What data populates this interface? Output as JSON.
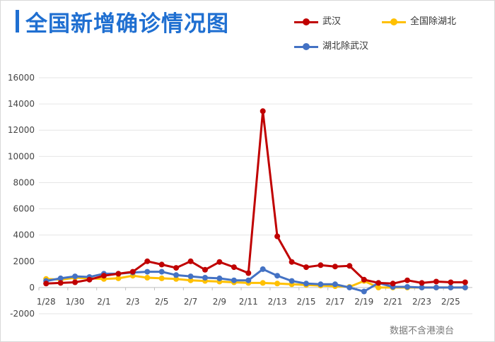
{
  "header": {
    "title": "全国新增确诊情况图"
  },
  "footnote": "数据不含港澳台",
  "chart_data": {
    "type": "line",
    "title": "全国新增确诊情况图",
    "xlabel": "",
    "ylabel": "",
    "ylim": [
      -2000,
      16000
    ],
    "yticks": [
      -2000,
      0,
      2000,
      4000,
      6000,
      8000,
      10000,
      12000,
      14000,
      16000
    ],
    "x": [
      "1/28",
      "1/29",
      "1/30",
      "1/31",
      "2/1",
      "2/2",
      "2/3",
      "2/4",
      "2/5",
      "2/6",
      "2/7",
      "2/8",
      "2/9",
      "2/10",
      "2/11",
      "2/12",
      "2/13",
      "2/14",
      "2/15",
      "2/16",
      "2/17",
      "2/18",
      "2/19",
      "2/20",
      "2/21",
      "2/22",
      "2/23",
      "2/24",
      "2/25",
      "2/26"
    ],
    "xtick_labels": [
      "1/28",
      "1/30",
      "2/1",
      "2/3",
      "2/5",
      "2/7",
      "2/9",
      "2/11",
      "2/13",
      "2/15",
      "2/17",
      "2/19",
      "2/21",
      "2/23",
      "2/25"
    ],
    "grid": true,
    "legend_position": "top-right",
    "series": [
      {
        "name": "武汉",
        "color": "#c00000",
        "values": [
          300,
          350,
          400,
          600,
          900,
          1050,
          1200,
          2000,
          1750,
          1500,
          2000,
          1350,
          1950,
          1550,
          1100,
          13450,
          3900,
          1950,
          1550,
          1700,
          1600,
          1650,
          600,
          350,
          300,
          550,
          350,
          450,
          400,
          400
        ]
      },
      {
        "name": "全国除湖北",
        "color": "#ffc000",
        "values": [
          650,
          600,
          750,
          700,
          650,
          700,
          900,
          750,
          700,
          650,
          550,
          500,
          450,
          400,
          350,
          350,
          300,
          250,
          200,
          150,
          100,
          50,
          500,
          0,
          0,
          0,
          0,
          0,
          0,
          0
        ]
      },
      {
        "name": "湖北除武汉",
        "color": "#4472c4",
        "values": [
          500,
          700,
          850,
          800,
          1050,
          1050,
          1150,
          1200,
          1200,
          950,
          850,
          750,
          700,
          550,
          550,
          1400,
          900,
          500,
          300,
          250,
          250,
          0,
          -300,
          350,
          50,
          50,
          0,
          0,
          0,
          0
        ]
      }
    ]
  }
}
